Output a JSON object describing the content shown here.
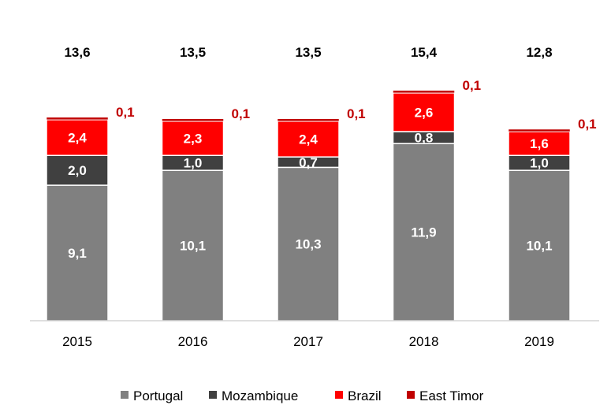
{
  "chart_data": {
    "type": "bar",
    "stacked": true,
    "title": "",
    "xlabel": "",
    "ylabel": "",
    "categories": [
      "2015",
      "2016",
      "2017",
      "2018",
      "2019"
    ],
    "series": [
      {
        "name": "Portugal",
        "color": "#808080",
        "values": [
          9.1,
          10.1,
          10.3,
          11.9,
          10.1
        ],
        "labels": [
          "9,1",
          "10,1",
          "10,3",
          "11,9",
          "10,1"
        ]
      },
      {
        "name": "Mozambique",
        "color": "#404040",
        "values": [
          2.0,
          1.0,
          0.7,
          0.8,
          1.0
        ],
        "labels": [
          "2,0",
          "1,0",
          "0,7",
          "0,8",
          "1,0"
        ]
      },
      {
        "name": "Brazil",
        "color": "#ff0000",
        "values": [
          2.4,
          2.3,
          2.4,
          2.6,
          1.6
        ],
        "labels": [
          "2,4",
          "2,3",
          "2,4",
          "2,6",
          "1,6"
        ]
      },
      {
        "name": "East Timor",
        "color": "#c00000",
        "values": [
          0.1,
          0.1,
          0.1,
          0.1,
          0.1
        ],
        "labels": [
          "0,1",
          "0,1",
          "0,1",
          "0,1",
          "0,1"
        ]
      }
    ],
    "totals": [
      13.6,
      13.5,
      13.5,
      15.4,
      12.8
    ],
    "total_labels": [
      "13,6",
      "13,5",
      "13,5",
      "15,4",
      "12,8"
    ],
    "ylim": [
      0,
      15.4
    ],
    "grid": false,
    "legend_position": "bottom"
  }
}
